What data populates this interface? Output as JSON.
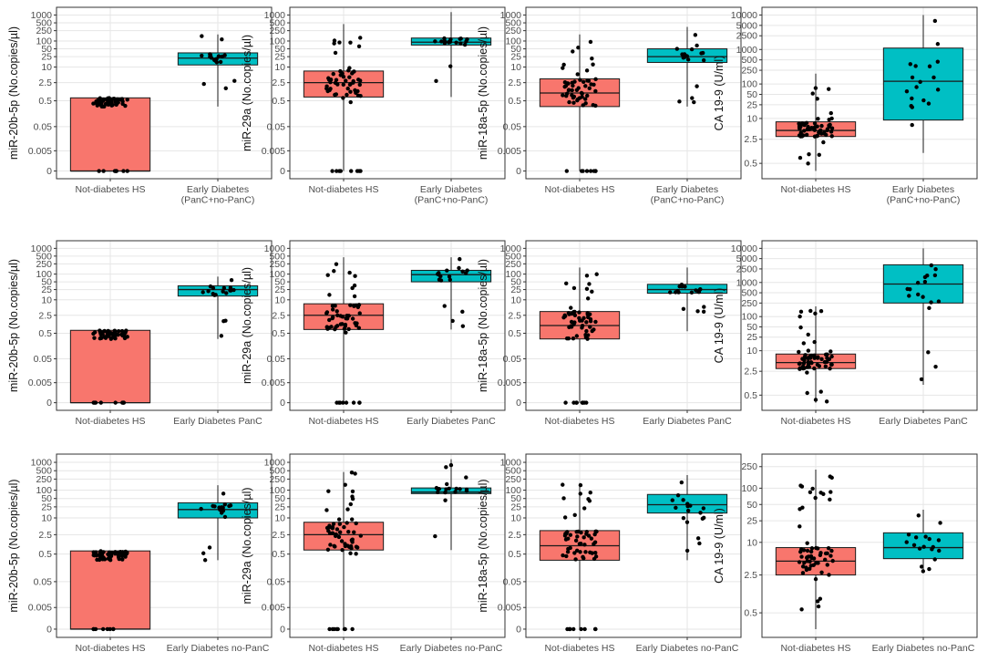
{
  "colors": {
    "group1": "#F8766D",
    "group2": "#00BFC4",
    "grid": "#e6e6e6",
    "panel_border": "#333333",
    "point": "#000000",
    "box_line": "#1a1a1a"
  },
  "chart_data": [
    {
      "type": "box",
      "ylabel": "miR-20b-5p (No.copies/µl)",
      "scale": "symlog",
      "ytick_labels": [
        "0",
        "0.005",
        "0.05",
        "0.5",
        "2.5",
        "10",
        "25",
        "50",
        "100",
        "250",
        "500",
        "1000"
      ],
      "ytick_values": [
        0,
        0.005,
        0.05,
        0.5,
        2.5,
        10,
        25,
        50,
        100,
        250,
        500,
        1000
      ],
      "categories": [
        [
          "Not-diabetes HS"
        ],
        [
          "Early Diabetes",
          "(PanC+no-PanC)"
        ]
      ],
      "boxes": [
        {
          "q1": 0,
          "median": 0,
          "q3": 0.65,
          "lo": 0,
          "hi": 0.65
        },
        {
          "q1": 12,
          "median": 22,
          "q3": 35,
          "lo": 0.3,
          "hi": 180
        }
      ]
    },
    {
      "type": "box",
      "ylabel": "miR-29a (No.copies/µl)",
      "scale": "symlog",
      "ytick_labels": [
        "0",
        "0.005",
        "0.05",
        "0.5",
        "2.5",
        "10",
        "25",
        "50",
        "100",
        "250",
        "500",
        "1000"
      ],
      "ytick_values": [
        0,
        0.005,
        0.05,
        0.5,
        2.5,
        10,
        25,
        50,
        100,
        250,
        500,
        1000
      ],
      "categories": [
        [
          "Not-diabetes HS"
        ],
        [
          "Early Diabetes",
          "(PanC+no-PanC)"
        ]
      ],
      "boxes": [
        {
          "q1": 0.7,
          "median": 2.5,
          "q3": 7,
          "lo": 0,
          "hi": 450
        },
        {
          "q1": 70,
          "median": 90,
          "q3": 130,
          "lo": 0.7,
          "hi": 1300
        }
      ]
    },
    {
      "type": "box",
      "ylabel": "miR-18a-5p (No.copies/µl)",
      "scale": "symlog",
      "ytick_labels": [
        "0",
        "0.005",
        "0.05",
        "0.5",
        "2.5",
        "10",
        "25",
        "50",
        "100",
        "250",
        "500",
        "1000"
      ],
      "ytick_values": [
        0,
        0.005,
        0.05,
        0.5,
        2.5,
        10,
        25,
        50,
        100,
        250,
        500,
        1000
      ],
      "categories": [
        [
          "Not-diabetes HS"
        ],
        [
          "Early Diabetes",
          "(PanC+no-PanC)"
        ]
      ],
      "boxes": [
        {
          "q1": 0.3,
          "median": 1,
          "q3": 3.5,
          "lo": 0,
          "hi": 180
        },
        {
          "q1": 15,
          "median": 25,
          "q3": 50,
          "lo": 0.3,
          "hi": 350
        }
      ]
    },
    {
      "type": "box",
      "ylabel": "CA 19-9 (U/ml)",
      "scale": "log",
      "ytick_labels": [
        "0.5",
        "2.5",
        "10",
        "25",
        "50",
        "100",
        "250",
        "500",
        "1000",
        "2500",
        "5000",
        "10000"
      ],
      "ytick_values": [
        0.5,
        2.5,
        10,
        25,
        50,
        100,
        250,
        500,
        1000,
        2500,
        5000,
        10000
      ],
      "domain": [
        0.3,
        10000
      ],
      "categories": [
        [
          "Not-diabetes HS"
        ],
        [
          "Early Diabetes",
          "(PanC+no-PanC)"
        ]
      ],
      "boxes": [
        {
          "q1": 3,
          "median": 4.5,
          "q3": 8,
          "lo": 0.3,
          "hi": 200
        },
        {
          "q1": 9,
          "median": 120,
          "q3": 1100,
          "lo": 1,
          "hi": 10000
        }
      ]
    },
    {
      "type": "box",
      "ylabel": "miR-20b-5p (No.copies/µl)",
      "scale": "symlog",
      "ytick_labels": [
        "0",
        "0.005",
        "0.05",
        "0.5",
        "2.5",
        "10",
        "25",
        "50",
        "100",
        "250",
        "500",
        "1000"
      ],
      "ytick_values": [
        0,
        0.005,
        0.05,
        0.5,
        2.5,
        10,
        25,
        50,
        100,
        250,
        500,
        1000
      ],
      "categories": [
        [
          "Not-diabetes HS"
        ],
        [
          "Early Diabetes PanC"
        ]
      ],
      "boxes": [
        {
          "q1": 0,
          "median": 0,
          "q3": 0.65,
          "lo": 0,
          "hi": 0.65
        },
        {
          "q1": 14,
          "median": 25,
          "q3": 35,
          "lo": 0.3,
          "hi": 80
        }
      ]
    },
    {
      "type": "box",
      "ylabel": "miR-29a (No.copies/µl)",
      "scale": "symlog",
      "ytick_labels": [
        "0",
        "0.005",
        "0.05",
        "0.5",
        "2.5",
        "10",
        "25",
        "50",
        "100",
        "250",
        "500",
        "1000"
      ],
      "ytick_values": [
        0,
        0.005,
        0.05,
        0.5,
        2.5,
        10,
        25,
        50,
        100,
        250,
        500,
        1000
      ],
      "categories": [
        [
          "Not-diabetes HS"
        ],
        [
          "Early Diabetes PanC"
        ]
      ],
      "boxes": [
        {
          "q1": 0.7,
          "median": 2.5,
          "q3": 7,
          "lo": 0,
          "hi": 450
        },
        {
          "q1": 50,
          "median": 95,
          "q3": 140,
          "lo": 0.7,
          "hi": 450
        }
      ]
    },
    {
      "type": "box",
      "ylabel": "miR-18a-5p (No.copies/µl)",
      "scale": "symlog",
      "ytick_labels": [
        "0",
        "0.005",
        "0.05",
        "0.5",
        "2.5",
        "10",
        "25",
        "50",
        "100",
        "250",
        "500",
        "1000"
      ],
      "ytick_values": [
        0,
        0.005,
        0.05,
        0.5,
        2.5,
        10,
        25,
        50,
        100,
        250,
        500,
        1000
      ],
      "categories": [
        [
          "Not-diabetes HS"
        ],
        [
          "Early Diabetes PanC"
        ]
      ],
      "boxes": [
        {
          "q1": 0.3,
          "median": 1,
          "q3": 3.5,
          "lo": 0,
          "hi": 180
        },
        {
          "q1": 18,
          "median": 25,
          "q3": 40,
          "lo": 0.6,
          "hi": 180
        }
      ]
    },
    {
      "type": "box",
      "ylabel": "CA 19-9 (U/ml)",
      "scale": "log",
      "ytick_labels": [
        "0.5",
        "2.5",
        "10",
        "25",
        "50",
        "100",
        "250",
        "500",
        "1000",
        "2500",
        "5000",
        "10000"
      ],
      "ytick_values": [
        0.5,
        2.5,
        10,
        25,
        50,
        100,
        250,
        500,
        1000,
        2500,
        5000,
        10000
      ],
      "domain": [
        0.3,
        10000
      ],
      "categories": [
        [
          "Not-diabetes HS"
        ],
        [
          "Early Diabetes PanC"
        ]
      ],
      "boxes": [
        {
          "q1": 3,
          "median": 4.5,
          "q3": 8,
          "lo": 0.3,
          "hi": 200
        },
        {
          "q1": 250,
          "median": 900,
          "q3": 3300,
          "lo": 1,
          "hi": 10000
        }
      ]
    },
    {
      "type": "box",
      "ylabel": "miR-20b-5p (No.copies/µl)",
      "scale": "symlog",
      "ytick_labels": [
        "0",
        "0.005",
        "0.05",
        "0.5",
        "2.5",
        "10",
        "25",
        "50",
        "100",
        "250",
        "500",
        "1000"
      ],
      "ytick_values": [
        0,
        0.005,
        0.05,
        0.5,
        2.5,
        10,
        25,
        50,
        100,
        250,
        500,
        1000
      ],
      "categories": [
        [
          "Not-diabetes HS"
        ],
        [
          "Early Diabetes no-PanC"
        ]
      ],
      "boxes": [
        {
          "q1": 0,
          "median": 0,
          "q3": 0.65,
          "lo": 0,
          "hi": 0.65
        },
        {
          "q1": 10,
          "median": 20,
          "q3": 35,
          "lo": 0.3,
          "hi": 150
        }
      ]
    },
    {
      "type": "box",
      "ylabel": "miR-29a (No.copies/µl)",
      "scale": "symlog",
      "ytick_labels": [
        "0",
        "0.005",
        "0.05",
        "0.5",
        "2.5",
        "10",
        "25",
        "50",
        "100",
        "250",
        "500",
        "1000"
      ],
      "ytick_values": [
        0,
        0.005,
        0.05,
        0.5,
        2.5,
        10,
        25,
        50,
        100,
        250,
        500,
        1000
      ],
      "categories": [
        [
          "Not-diabetes HS"
        ],
        [
          "Early Diabetes no-PanC"
        ]
      ],
      "boxes": [
        {
          "q1": 0.7,
          "median": 2.5,
          "q3": 7,
          "lo": 0,
          "hi": 450
        },
        {
          "q1": 75,
          "median": 85,
          "q3": 120,
          "lo": 0.7,
          "hi": 1300
        }
      ]
    },
    {
      "type": "box",
      "ylabel": "miR-18a-5p (No.copies/µl)",
      "scale": "symlog",
      "ytick_labels": [
        "0",
        "0.005",
        "0.05",
        "0.5",
        "2.5",
        "10",
        "25",
        "50",
        "100",
        "250",
        "500",
        "1000"
      ],
      "ytick_values": [
        0,
        0.005,
        0.05,
        0.5,
        2.5,
        10,
        25,
        50,
        100,
        250,
        500,
        1000
      ],
      "categories": [
        [
          "Not-diabetes HS"
        ],
        [
          "Early Diabetes no-PanC"
        ]
      ],
      "boxes": [
        {
          "q1": 0.3,
          "median": 1,
          "q3": 3.5,
          "lo": 0,
          "hi": 180
        },
        {
          "q1": 15,
          "median": 30,
          "q3": 70,
          "lo": 0.3,
          "hi": 350
        }
      ]
    },
    {
      "type": "box",
      "ylabel": "CA 19-9 (U/ml)",
      "scale": "log",
      "ytick_labels": [
        "0.5",
        "2.5",
        "10",
        "25",
        "50",
        "100",
        "250"
      ],
      "ytick_values": [
        0.5,
        2.5,
        10,
        25,
        50,
        100,
        250
      ],
      "domain": [
        0.25,
        300
      ],
      "categories": [
        [
          "Not-diabetes HS"
        ],
        [
          "Early Diabetes no-PanC"
        ]
      ],
      "boxes": [
        {
          "q1": 2.5,
          "median": 4.5,
          "q3": 8,
          "lo": 0.25,
          "hi": 220
        },
        {
          "q1": 5,
          "median": 8,
          "q3": 15,
          "lo": 2.8,
          "hi": 40
        }
      ]
    }
  ]
}
